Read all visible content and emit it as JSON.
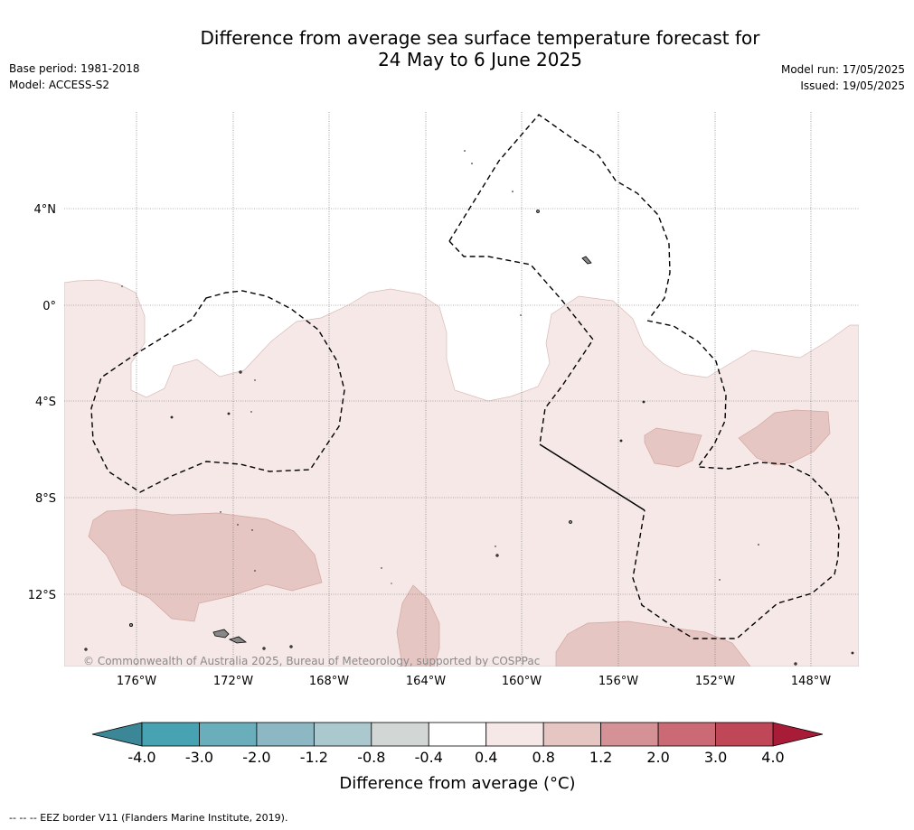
{
  "title": {
    "line1": "Difference from average sea surface temperature forecast for",
    "line2": "24 May to 6 June 2025"
  },
  "meta": {
    "base_period": "Base period: 1981-2018",
    "model": "Model: ACCESS-S2",
    "model_run": "Model run: 17/05/2025",
    "issued": "Issued: 19/05/2025"
  },
  "map": {
    "lon_labels": [
      "176°W",
      "172°W",
      "168°W",
      "164°W",
      "160°W",
      "156°W",
      "152°W",
      "148°W"
    ],
    "lat_labels": [
      "4°N",
      "0°",
      "4°S",
      "8°S",
      "12°S"
    ],
    "copyright": "© Commonwealth of Australia 2025, Bureau of Meteorology, supported by COSPPac"
  },
  "colorbar": {
    "labels": [
      "-4.0",
      "-3.0",
      "-2.0",
      "-1.2",
      "-0.8",
      "-0.4",
      "0.4",
      "0.8",
      "1.2",
      "2.0",
      "3.0",
      "4.0"
    ],
    "colors": [
      "#47a2b2",
      "#6aaebb",
      "#8db8c3",
      "#abc8ce",
      "#d2d7d6",
      "#ffffff",
      "#f5e8e7",
      "#e6c6c2",
      "#d49297",
      "#cb6a75",
      "#c04757"
    ],
    "under_color": "#3b8797",
    "over_color": "#a81c38",
    "label": "Difference from average (°C)"
  },
  "footer": {
    "eez": "--  --  -- EEZ border V11 (Flanders Marine Institute, 2019)."
  }
}
